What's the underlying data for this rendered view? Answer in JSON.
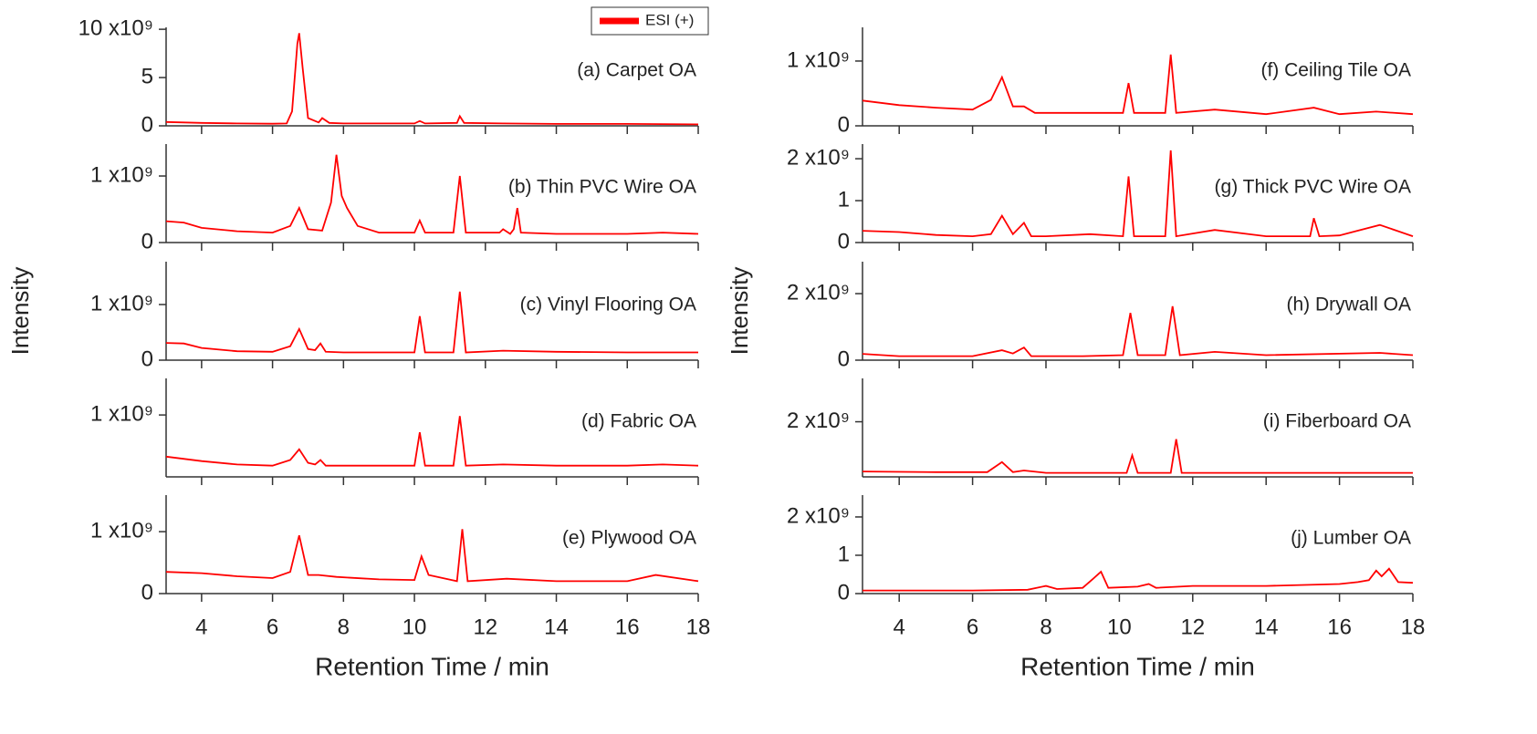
{
  "chart_data": [
    {
      "type": "line",
      "title": "(a) Carpet OA",
      "x": [
        3,
        4,
        5,
        6,
        6.4,
        6.55,
        6.7,
        6.75,
        6.85,
        7.0,
        7.3,
        7.4,
        7.6,
        8,
        10,
        10.15,
        10.3,
        11.2,
        11.28,
        11.4,
        12.5,
        14,
        16,
        18
      ],
      "series": [
        {
          "name": "ESI (+)",
          "color": "#ff0000",
          "values": [
            400000000.0,
            300000000.0,
            250000000.0,
            220000000.0,
            250000000.0,
            1500000000.0,
            8500000000.0,
            9600000000.0,
            6000000000.0,
            800000000.0,
            350000000.0,
            800000000.0,
            300000000.0,
            250000000.0,
            250000000.0,
            500000000.0,
            250000000.0,
            300000000.0,
            1000000000.0,
            300000000.0,
            250000000.0,
            200000000.0,
            200000000.0,
            150000000.0
          ]
        }
      ],
      "xlim": [
        3,
        18
      ],
      "xticks": [
        4,
        6,
        8,
        10,
        12,
        14,
        16,
        18
      ],
      "ylim": [
        0,
        10200000000.0
      ],
      "yticks": [
        0,
        {
          "value": 5000000000.0,
          "label": "5"
        },
        {
          "value": 10000000000.0,
          "label": "10 x10⁹"
        }
      ]
    },
    {
      "type": "line",
      "title": "(b) Thin PVC Wire OA",
      "x": [
        3,
        3.5,
        4,
        5,
        6,
        6.5,
        6.75,
        7.0,
        7.4,
        7.65,
        7.8,
        7.95,
        8.1,
        8.4,
        9,
        10.0,
        10.15,
        10.3,
        11.1,
        11.28,
        11.45,
        12.4,
        12.5,
        12.7,
        12.8,
        12.9,
        13.0,
        14,
        16,
        17,
        18
      ],
      "color": "#ff0000",
      "values": [
        320000000.0,
        300000000.0,
        220000000.0,
        170000000.0,
        150000000.0,
        250000000.0,
        520000000.0,
        200000000.0,
        180000000.0,
        600000000.0,
        1320000000.0,
        700000000.0,
        520000000.0,
        250000000.0,
        150000000.0,
        150000000.0,
        330000000.0,
        150000000.0,
        150000000.0,
        1000000000.0,
        150000000.0,
        150000000.0,
        200000000.0,
        130000000.0,
        200000000.0,
        520000000.0,
        150000000.0,
        130000000.0,
        130000000.0,
        150000000.0,
        130000000.0
      ],
      "xlim": [
        3,
        18
      ],
      "xticks": [
        4,
        6,
        8,
        10,
        12,
        14,
        16,
        18
      ],
      "ylim": [
        0,
        1480000000.0
      ],
      "yticks": [
        0,
        {
          "value": 1000000000.0,
          "label": "1 x10⁹"
        }
      ]
    },
    {
      "type": "line",
      "title": "(c) Vinyl Flooring OA",
      "ylabel": "Intensity",
      "x": [
        3,
        3.5,
        4,
        5,
        6,
        6.5,
        6.75,
        7.0,
        7.2,
        7.35,
        7.5,
        8,
        10.0,
        10.15,
        10.3,
        11.1,
        11.28,
        11.45,
        12.5,
        14,
        16,
        18
      ],
      "color": "#ff0000",
      "values": [
        310000000.0,
        300000000.0,
        220000000.0,
        160000000.0,
        150000000.0,
        250000000.0,
        560000000.0,
        200000000.0,
        180000000.0,
        300000000.0,
        150000000.0,
        140000000.0,
        140000000.0,
        790000000.0,
        140000000.0,
        140000000.0,
        1230000000.0,
        140000000.0,
        170000000.0,
        150000000.0,
        140000000.0,
        140000000.0
      ],
      "xlim": [
        3,
        18
      ],
      "xticks": [
        4,
        6,
        8,
        10,
        12,
        14,
        16,
        18
      ],
      "ylim": [
        0,
        1770000000.0
      ],
      "yticks": [
        0,
        {
          "value": 1000000000.0,
          "label": "1 x10⁹"
        }
      ]
    },
    {
      "type": "line",
      "title": "(d) Fabric OA",
      "x": [
        3,
        4,
        5,
        6,
        6.5,
        6.75,
        7.0,
        7.2,
        7.35,
        7.5,
        8,
        10.0,
        10.15,
        10.3,
        11.1,
        11.28,
        11.45,
        12.5,
        14,
        16,
        17,
        18
      ],
      "color": "#ff0000",
      "values": [
        260000000.0,
        180000000.0,
        120000000.0,
        100000000.0,
        200000000.0,
        390000000.0,
        150000000.0,
        120000000.0,
        200000000.0,
        100000000.0,
        100000000.0,
        100000000.0,
        690000000.0,
        100000000.0,
        100000000.0,
        980000000.0,
        100000000.0,
        120000000.0,
        100000000.0,
        100000000.0,
        120000000.0,
        100000000.0
      ],
      "xlim": [
        3,
        18
      ],
      "xticks": [
        4,
        6,
        8,
        10,
        12,
        14,
        16,
        18
      ],
      "ylim": [
        -100000000.0,
        1650000000.0
      ],
      "yticks": [
        {
          "value": 1000000000.0,
          "label": "1 x10⁹"
        }
      ]
    },
    {
      "type": "line",
      "title": "(e) Plywood OA",
      "xlabel": "Retention Time / min",
      "x": [
        3,
        4,
        5,
        6,
        6.5,
        6.75,
        7.0,
        7.3,
        7.8,
        9,
        10.0,
        10.2,
        10.4,
        11.2,
        11.35,
        11.5,
        12.6,
        14,
        16,
        16.8,
        18
      ],
      "color": "#ff0000",
      "values": [
        350000000.0,
        330000000.0,
        280000000.0,
        250000000.0,
        350000000.0,
        940000000.0,
        300000000.0,
        300000000.0,
        270000000.0,
        230000000.0,
        220000000.0,
        600000000.0,
        300000000.0,
        200000000.0,
        1040000000.0,
        200000000.0,
        240000000.0,
        200000000.0,
        200000000.0,
        300000000.0,
        200000000.0
      ],
      "xlim": [
        3,
        18
      ],
      "xticks": [
        4,
        6,
        8,
        10,
        12,
        14,
        16,
        18
      ],
      "ylim": [
        0,
        1590000000.0
      ],
      "yticks": [
        0,
        {
          "value": 1000000000.0,
          "label": "1 x10⁹"
        }
      ]
    },
    {
      "type": "line",
      "title": "(f) Ceiling Tile OA",
      "x": [
        3,
        4,
        5,
        6,
        6.5,
        6.8,
        7.1,
        7.4,
        7.7,
        8,
        9,
        10.1,
        10.25,
        10.4,
        11.25,
        11.4,
        11.55,
        12.6,
        14,
        15.3,
        16,
        17,
        18
      ],
      "color": "#ff0000",
      "values": [
        390000000.0,
        320000000.0,
        280000000.0,
        250000000.0,
        400000000.0,
        750000000.0,
        300000000.0,
        300000000.0,
        200000000.0,
        200000000.0,
        200000000.0,
        200000000.0,
        660000000.0,
        200000000.0,
        200000000.0,
        1100000000.0,
        200000000.0,
        250000000.0,
        180000000.0,
        280000000.0,
        180000000.0,
        220000000.0,
        180000000.0
      ],
      "xlim": [
        3,
        18
      ],
      "xticks": [
        4,
        6,
        8,
        10,
        12,
        14,
        16,
        18
      ],
      "ylim": [
        0,
        1520000000.0
      ],
      "yticks": [
        0,
        {
          "value": 1000000000.0,
          "label": "1 x10⁹"
        }
      ]
    },
    {
      "type": "line",
      "title": "(g) Thick PVC Wire OA",
      "x": [
        3,
        4,
        5,
        6,
        6.5,
        6.8,
        7.1,
        7.4,
        7.6,
        8,
        9.2,
        10.1,
        10.25,
        10.4,
        11.25,
        11.4,
        11.55,
        12.6,
        14,
        15.2,
        15.3,
        15.45,
        16,
        17.1,
        18
      ],
      "color": "#ff0000",
      "values": [
        280000000.0,
        250000000.0,
        180000000.0,
        150000000.0,
        200000000.0,
        640000000.0,
        200000000.0,
        470000000.0,
        150000000.0,
        150000000.0,
        200000000.0,
        150000000.0,
        1580000000.0,
        150000000.0,
        150000000.0,
        2200000000.0,
        150000000.0,
        300000000.0,
        150000000.0,
        150000000.0,
        580000000.0,
        150000000.0,
        170000000.0,
        420000000.0,
        150000000.0
      ],
      "xlim": [
        3,
        18
      ],
      "xticks": [
        4,
        6,
        8,
        10,
        12,
        14,
        16,
        18
      ],
      "ylim": [
        0,
        2350000000.0
      ],
      "yticks": [
        0,
        {
          "value": 1000000000.0,
          "label": "1"
        },
        {
          "value": 2000000000.0,
          "label": "2 x10⁹"
        }
      ]
    },
    {
      "type": "line",
      "title": "(h) Drywall OA",
      "ylabel": "Intensity",
      "x": [
        3,
        4,
        6,
        6.8,
        7.1,
        7.4,
        7.6,
        9,
        10.1,
        10.3,
        10.5,
        11.25,
        11.45,
        11.65,
        12.6,
        14,
        17.1,
        18
      ],
      "color": "#ff0000",
      "values": [
        190000000.0,
        120000000.0,
        120000000.0,
        300000000.0,
        200000000.0,
        380000000.0,
        120000000.0,
        120000000.0,
        150000000.0,
        1420000000.0,
        150000000.0,
        150000000.0,
        1620000000.0,
        150000000.0,
        250000000.0,
        150000000.0,
        220000000.0,
        150000000.0
      ],
      "xlim": [
        3,
        18
      ],
      "xticks": [
        4,
        6,
        8,
        10,
        12,
        14,
        16,
        18
      ],
      "ylim": [
        0,
        2960000000.0
      ],
      "yticks": [
        0,
        {
          "value": 2000000000.0,
          "label": "2 x10⁹"
        }
      ]
    },
    {
      "type": "line",
      "title": "(i) Fiberboard OA",
      "x": [
        3,
        5,
        6.4,
        6.8,
        7.1,
        7.4,
        8,
        10.2,
        10.35,
        10.5,
        11.4,
        11.55,
        11.7,
        14,
        18
      ],
      "color": "#ff0000",
      "values": [
        520000000.0,
        500000000.0,
        500000000.0,
        800000000.0,
        500000000.0,
        550000000.0,
        480000000.0,
        480000000.0,
        1000000000.0,
        480000000.0,
        480000000.0,
        1480000000.0,
        480000000.0,
        480000000.0,
        480000000.0
      ],
      "xlim": [
        3,
        18
      ],
      "xticks": [
        4,
        6,
        8,
        10,
        12,
        14,
        16,
        18
      ],
      "ylim": [
        360000000.0,
        3290000000.0
      ],
      "yticks": [
        {
          "value": 2000000000.0,
          "label": "2 x10⁹"
        }
      ]
    },
    {
      "type": "line",
      "title": "(j) Lumber OA",
      "xlabel": "Retention Time / min",
      "x": [
        3,
        6,
        7.5,
        8,
        8.3,
        9,
        9.3,
        9.5,
        9.7,
        10.5,
        10.8,
        11,
        12,
        14,
        16,
        16.5,
        16.8,
        17,
        17.15,
        17.35,
        17.6,
        18
      ],
      "color": "#ff0000",
      "values": [
        80000000.0,
        80000000.0,
        100000000.0,
        200000000.0,
        120000000.0,
        150000000.0,
        400000000.0,
        570000000.0,
        150000000.0,
        180000000.0,
        250000000.0,
        150000000.0,
        200000000.0,
        200000000.0,
        250000000.0,
        300000000.0,
        350000000.0,
        600000000.0,
        450000000.0,
        650000000.0,
        300000000.0,
        280000000.0
      ],
      "xlim": [
        3,
        18
      ],
      "xticks": [
        4,
        6,
        8,
        10,
        12,
        14,
        16,
        18
      ],
      "ylim": [
        0,
        2570000000.0
      ],
      "yticks": [
        0,
        {
          "value": 1000000000.0,
          "label": "1"
        },
        {
          "value": 2000000000.0,
          "label": "2 x10⁹"
        }
      ]
    }
  ]
}
